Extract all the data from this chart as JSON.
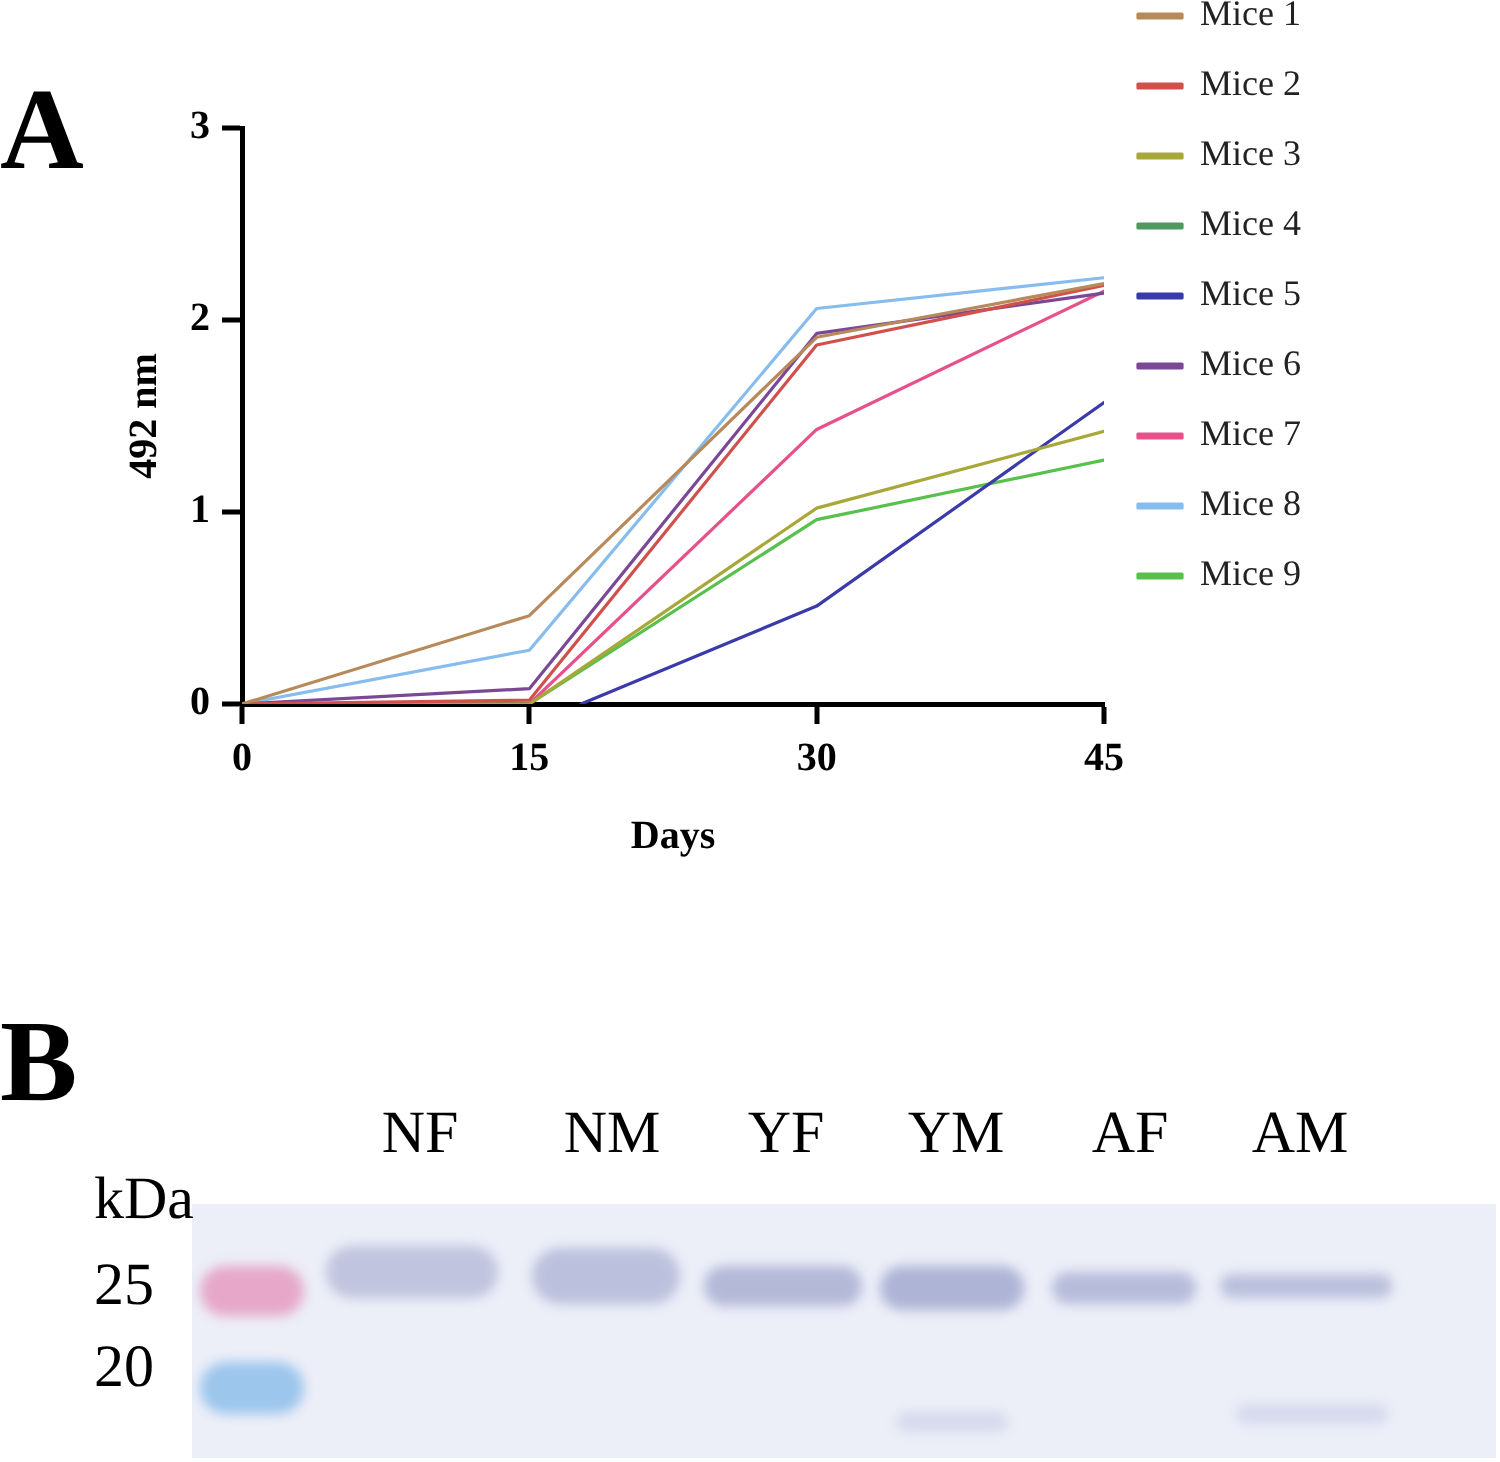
{
  "chart_data": [
    {
      "type": "line",
      "annotations": [
        "A"
      ],
      "xlabel": "Days",
      "ylabel": "492 nm",
      "x": [
        0,
        15,
        30,
        45
      ],
      "xlim": [
        0,
        45
      ],
      "xticks": [
        0,
        15,
        30,
        45
      ],
      "ylim": [
        0,
        3
      ],
      "yticks": [
        0,
        1,
        2,
        3
      ],
      "legend": "right",
      "series": [
        {
          "name": "Mice 1",
          "color": "#b8895a",
          "values": [
            0,
            0.46,
            1.91,
            2.19
          ]
        },
        {
          "name": "Mice 2",
          "color": "#d0504c",
          "values": [
            0,
            0.02,
            1.87,
            2.18
          ]
        },
        {
          "name": "Mice 3",
          "color": "#a8a83a",
          "values": [
            0,
            0,
            1.02,
            1.42
          ]
        },
        {
          "name": "Mice 4",
          "color": "#4e9a5e",
          "values": [
            null,
            null,
            null,
            null
          ]
        },
        {
          "name": "Mice 5",
          "color": "#3a3aaa",
          "x": [
            17.7,
            30,
            45
          ],
          "values": [
            0,
            0.51,
            1.57
          ]
        },
        {
          "name": "Mice 6",
          "color": "#7a4896",
          "values": [
            0,
            0.08,
            1.93,
            2.14
          ]
        },
        {
          "name": "Mice 7",
          "color": "#e8508c",
          "values": [
            0,
            0,
            1.43,
            2.15
          ]
        },
        {
          "name": "Mice 8",
          "color": "#86bcee",
          "values": [
            0,
            0.28,
            2.06,
            2.22
          ]
        },
        {
          "name": "Mice 9",
          "color": "#58c04c",
          "values": [
            0,
            0,
            0.96,
            1.27
          ]
        }
      ]
    },
    {
      "type": "other",
      "categories": [
        "NF",
        "NM",
        "YF",
        "YM",
        "AF",
        "AM"
      ],
      "annotations": [
        "B",
        "kDa",
        "25",
        "20"
      ]
    }
  ]
}
